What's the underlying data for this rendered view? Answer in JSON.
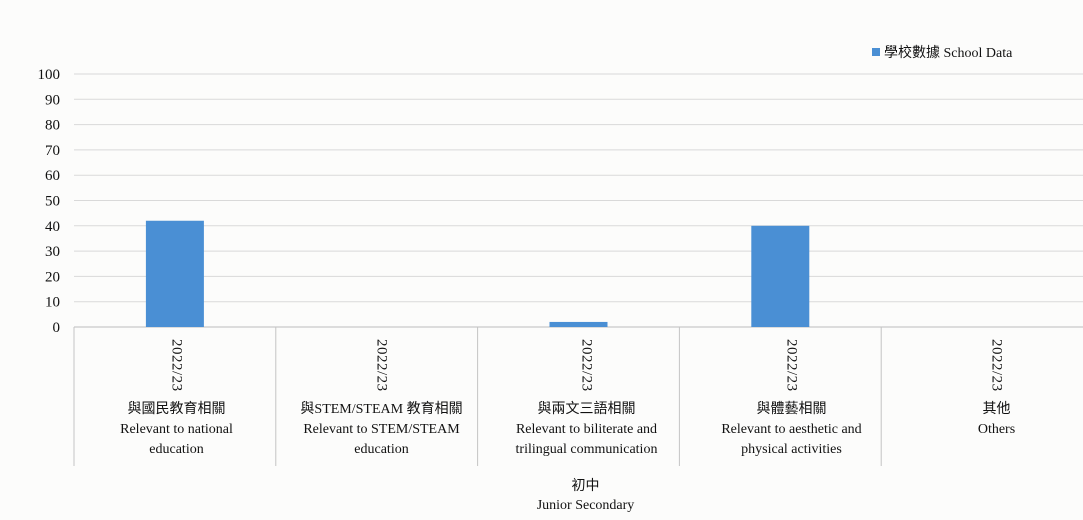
{
  "chart_data": {
    "type": "bar",
    "group_label": {
      "zh": "初中",
      "en": "Junior Secondary"
    },
    "categories": [
      {
        "period": "2022/23",
        "zh": "與國民教育相關",
        "en": [
          "Relevant to national",
          "education"
        ]
      },
      {
        "period": "2022/23",
        "zh": "與STEM/STEAM 教育相關",
        "en": [
          "Relevant to STEM/STEAM",
          "education"
        ]
      },
      {
        "period": "2022/23",
        "zh": "與兩文三語相關",
        "en": [
          "Relevant to biliterate and",
          "trilingual communication"
        ]
      },
      {
        "period": "2022/23",
        "zh": "與體藝相關",
        "en": [
          "Relevant to aesthetic and",
          "physical activities"
        ]
      },
      {
        "period": "2022/23",
        "zh": "其他",
        "en": [
          "Others"
        ]
      }
    ],
    "series": [
      {
        "name": "學校數據 School Data",
        "color": "#4a8fd4",
        "values": [
          42,
          0,
          2,
          40,
          0
        ]
      }
    ],
    "ylim": [
      0,
      100
    ],
    "yticks": [
      0,
      10,
      20,
      30,
      40,
      50,
      60,
      70,
      80,
      90,
      100
    ],
    "grid": true,
    "legend_position": "top-right"
  }
}
